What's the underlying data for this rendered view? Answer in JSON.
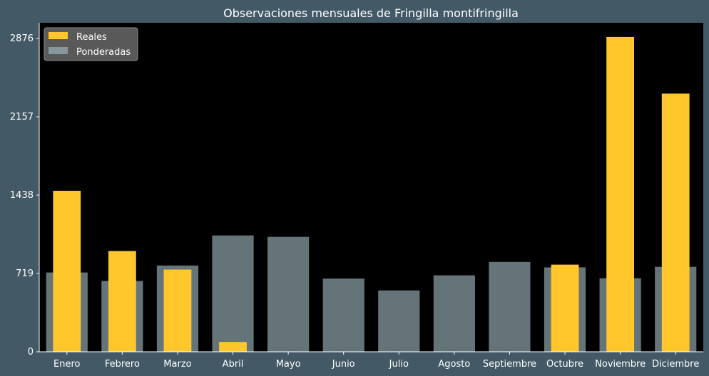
{
  "chart_data": {
    "type": "bar",
    "title": "Observaciones mensuales de Fringilla montifringilla",
    "xlabel": "",
    "ylabel": "",
    "categories": [
      "Enero",
      "Febrero",
      "Marzo",
      "Abril",
      "Mayo",
      "Junio",
      "Julio",
      "Agosto",
      "Septiembre",
      "Octubre",
      "Noviembre",
      "Diciembre"
    ],
    "yticks": [
      0,
      719,
      1438,
      2157,
      2876
    ],
    "ylim": [
      0,
      3020
    ],
    "series": [
      {
        "name": "Reales",
        "color": "#ffc72c",
        "values": [
          1478,
          925,
          755,
          90,
          0,
          0,
          0,
          0,
          0,
          800,
          2890,
          2370
        ]
      },
      {
        "name": "Ponderadas",
        "color": "#a9c2c8",
        "values": [
          728,
          650,
          792,
          1068,
          1055,
          672,
          563,
          702,
          825,
          775,
          675,
          780
        ]
      }
    ],
    "legend": "top-left",
    "grid": false
  }
}
